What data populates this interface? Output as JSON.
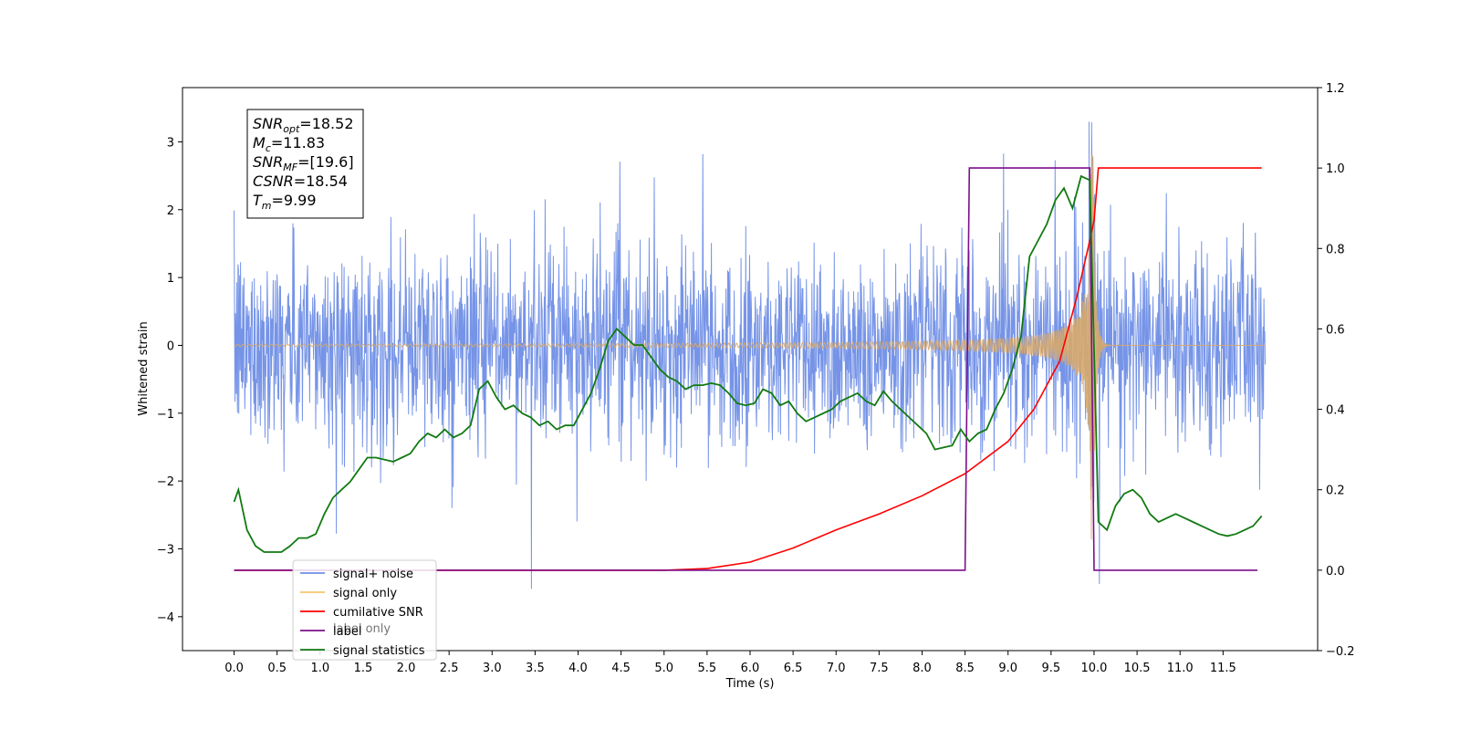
{
  "chart_data": {
    "type": "line",
    "xlabel": "Time (s)",
    "ylabel": "Whitened strain",
    "xlim": [
      -0.6,
      12.6
    ],
    "ylim": [
      -4.5,
      3.8
    ],
    "y2lim": [
      -0.2,
      1.2
    ],
    "x_ticks": [
      "0.0",
      "0.5",
      "1.0",
      "1.5",
      "2.0",
      "2.5",
      "3.0",
      "3.5",
      "4.0",
      "4.5",
      "5.0",
      "5.5",
      "6.0",
      "6.5",
      "7.0",
      "7.5",
      "8.0",
      "8.5",
      "9.0",
      "9.5",
      "10.0",
      "10.5",
      "11.0",
      "11.5"
    ],
    "y_ticks": [
      "3",
      "2",
      "1",
      "0",
      "−1",
      "−2",
      "−3",
      "−4"
    ],
    "y2_ticks": [
      "1.2",
      "1.0",
      "0.8",
      "0.6",
      "0.4",
      "0.2",
      "0.0",
      "−0.2"
    ],
    "annotation": {
      "lines": [
        {
          "sym": "SNR",
          "sub": "opt",
          "value": "=18.52"
        },
        {
          "sym": "M",
          "sub": "c",
          "value": "=11.83"
        },
        {
          "sym": "SNR",
          "sub": "MF",
          "value": "=[19.6]"
        },
        {
          "sym": "CSNR",
          "sub": "",
          "value": "=18.54"
        },
        {
          "sym": "T",
          "sub": "m",
          "value": "=9.99"
        }
      ]
    },
    "legend": {
      "position": "lower-left",
      "entries": [
        {
          "label": "signal+ noise",
          "color": "#6f8ee6"
        },
        {
          "label": "signal only",
          "color": "#f5c46e"
        },
        {
          "label": "cumilative SNR",
          "color": "#ff0000"
        },
        {
          "label": "label",
          "color": "#7b0f8a"
        },
        {
          "label": "signal statistics",
          "color": "#117a11"
        }
      ],
      "hidden_label": "label only"
    },
    "series": [
      {
        "name": "signal+ noise",
        "axis": "left",
        "color": "#6f8ee6",
        "description_range": [
          0,
          11.99
        ],
        "amplitude_envelope": 1.3,
        "x_end": 11.99
      },
      {
        "name": "signal only",
        "axis": "left",
        "color": "#d8a86a",
        "merger_time": 9.99,
        "peak_amplitude": 2.9
      },
      {
        "name": "cumilative SNR",
        "axis": "right",
        "color": "#ff0000",
        "x": [
          0.0,
          5.0,
          5.5,
          6.0,
          6.5,
          7.0,
          7.5,
          8.0,
          8.5,
          9.0,
          9.3,
          9.6,
          9.8,
          9.95,
          10.0,
          10.05,
          11.95
        ],
        "y": [
          0.0,
          0.0,
          0.004,
          0.02,
          0.055,
          0.1,
          0.14,
          0.185,
          0.24,
          0.32,
          0.4,
          0.52,
          0.68,
          0.82,
          0.87,
          1.0,
          1.0
        ]
      },
      {
        "name": "label",
        "axis": "right",
        "color": "#7b0f8a",
        "x": [
          0.0,
          8.5,
          8.55,
          9.95,
          10.0,
          11.9
        ],
        "y": [
          0.0,
          0.0,
          1.0,
          1.0,
          0.0,
          0.0
        ]
      },
      {
        "name": "signal statistics",
        "axis": "right",
        "color": "#117a11",
        "x": [
          0.0,
          0.05,
          0.15,
          0.25,
          0.35,
          0.45,
          0.55,
          0.65,
          0.75,
          0.85,
          0.95,
          1.05,
          1.15,
          1.25,
          1.35,
          1.45,
          1.55,
          1.65,
          1.75,
          1.85,
          1.95,
          2.05,
          2.15,
          2.25,
          2.35,
          2.45,
          2.55,
          2.65,
          2.75,
          2.85,
          2.95,
          3.05,
          3.15,
          3.25,
          3.35,
          3.45,
          3.55,
          3.65,
          3.75,
          3.85,
          3.95,
          4.05,
          4.15,
          4.25,
          4.35,
          4.45,
          4.55,
          4.65,
          4.75,
          4.85,
          4.95,
          5.05,
          5.15,
          5.25,
          5.35,
          5.45,
          5.55,
          5.65,
          5.75,
          5.85,
          5.95,
          6.05,
          6.15,
          6.25,
          6.35,
          6.45,
          6.55,
          6.65,
          6.75,
          6.85,
          6.95,
          7.05,
          7.15,
          7.25,
          7.35,
          7.45,
          7.55,
          7.65,
          7.75,
          7.85,
          7.95,
          8.05,
          8.15,
          8.25,
          8.35,
          8.45,
          8.55,
          8.65,
          8.75,
          8.85,
          8.95,
          9.05,
          9.15,
          9.25,
          9.35,
          9.45,
          9.55,
          9.65,
          9.75,
          9.85,
          9.95,
          10.05,
          10.15,
          10.25,
          10.35,
          10.45,
          10.55,
          10.65,
          10.75,
          10.85,
          10.95,
          11.05,
          11.15,
          11.25,
          11.35,
          11.45,
          11.55,
          11.65,
          11.75,
          11.85,
          11.95
        ],
        "y": [
          0.17,
          0.2,
          0.1,
          0.06,
          0.045,
          0.045,
          0.045,
          0.06,
          0.08,
          0.08,
          0.09,
          0.14,
          0.18,
          0.2,
          0.22,
          0.25,
          0.28,
          0.28,
          0.275,
          0.27,
          0.28,
          0.29,
          0.32,
          0.34,
          0.33,
          0.35,
          0.33,
          0.34,
          0.36,
          0.45,
          0.47,
          0.43,
          0.4,
          0.41,
          0.39,
          0.38,
          0.36,
          0.37,
          0.35,
          0.36,
          0.36,
          0.4,
          0.44,
          0.5,
          0.57,
          0.6,
          0.58,
          0.56,
          0.56,
          0.53,
          0.5,
          0.48,
          0.47,
          0.45,
          0.46,
          0.46,
          0.465,
          0.46,
          0.44,
          0.415,
          0.41,
          0.415,
          0.45,
          0.44,
          0.41,
          0.42,
          0.39,
          0.37,
          0.38,
          0.39,
          0.4,
          0.42,
          0.43,
          0.44,
          0.42,
          0.41,
          0.445,
          0.42,
          0.4,
          0.38,
          0.36,
          0.34,
          0.3,
          0.305,
          0.31,
          0.35,
          0.32,
          0.34,
          0.35,
          0.4,
          0.44,
          0.5,
          0.58,
          0.78,
          0.82,
          0.86,
          0.92,
          0.95,
          0.9,
          0.98,
          0.97,
          0.12,
          0.1,
          0.16,
          0.19,
          0.2,
          0.18,
          0.14,
          0.12,
          0.13,
          0.14,
          0.13,
          0.12,
          0.11,
          0.1,
          0.09,
          0.085,
          0.09,
          0.1,
          0.11,
          0.135
        ]
      }
    ]
  }
}
